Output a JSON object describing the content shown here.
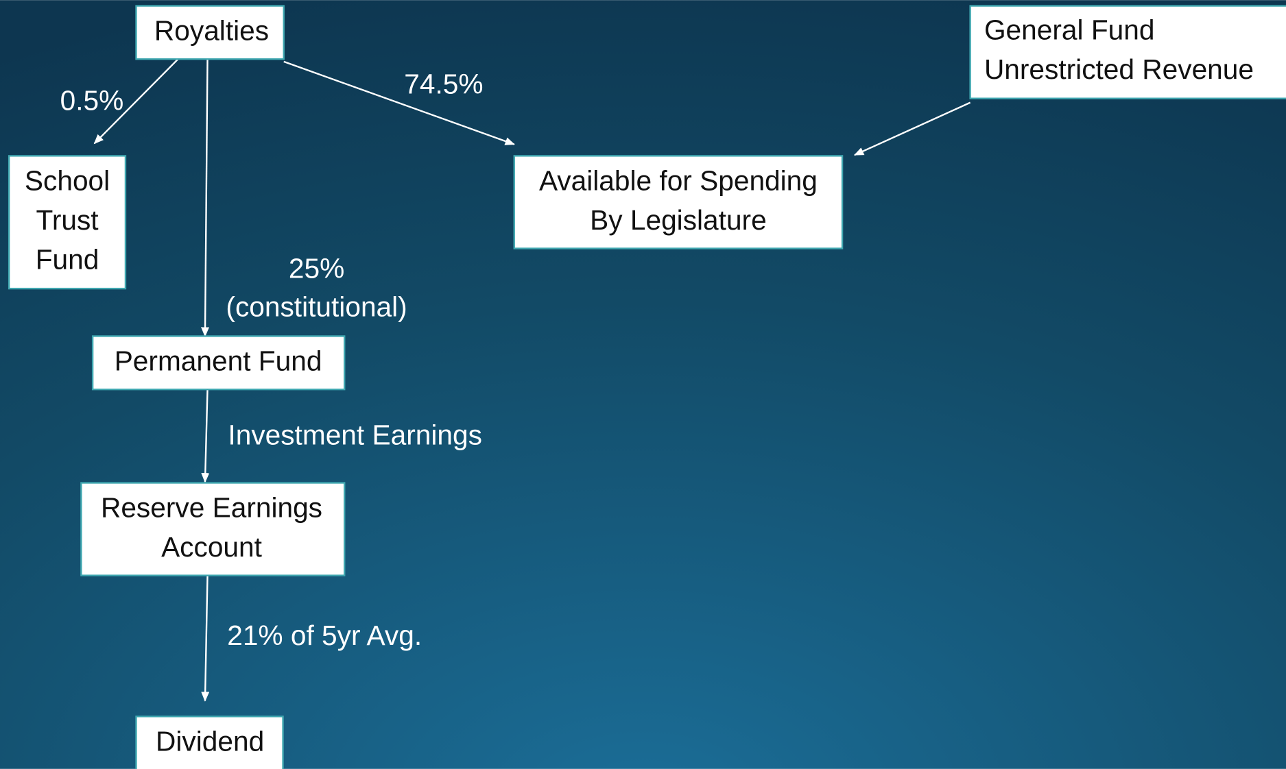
{
  "nodes": [
    {
      "lines": [
        "Royalties"
      ]
    },
    {
      "lines": [
        "General Fund",
        "Unrestricted Revenue"
      ]
    },
    {
      "lines": [
        "School",
        "Trust",
        "Fund"
      ]
    },
    {
      "lines": [
        "Available for Spending",
        "By Legislature"
      ]
    },
    {
      "lines": [
        "Permanent Fund"
      ]
    },
    {
      "lines": [
        "Reserve Earnings",
        "Account"
      ]
    },
    {
      "lines": [
        "Dividend"
      ]
    }
  ],
  "edges": [
    {
      "label": [
        "0.5%"
      ]
    },
    {
      "label": [
        "74.5%"
      ]
    },
    {
      "label": [
        "25%",
        "(constitutional)"
      ]
    },
    {
      "label": [
        "Investment Earnings"
      ]
    },
    {
      "label": [
        "21% of 5yr Avg."
      ]
    }
  ]
}
